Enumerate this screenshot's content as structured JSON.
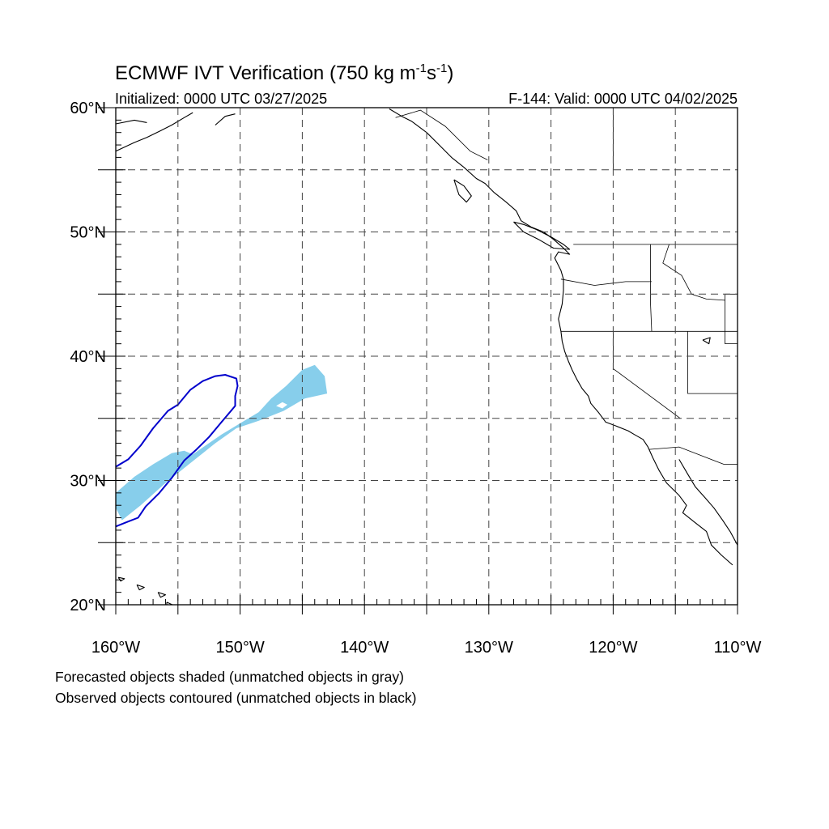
{
  "title": {
    "text": "ECMWF IVT Verification (750 kg m",
    "sup1": "-1",
    "mid": "s",
    "sup2": "-1",
    "close": ")"
  },
  "initialized": "Initialized: 0000 UTC 03/27/2025",
  "valid": "F-144: Valid: 0000 UTC 04/02/2025",
  "lat_labels": [
    {
      "text": "60°N",
      "lat": 60
    },
    {
      "text": "50°N",
      "lat": 50
    },
    {
      "text": "40°N",
      "lat": 40
    },
    {
      "text": "30°N",
      "lat": 30
    },
    {
      "text": "20°N",
      "lat": 20
    }
  ],
  "lon_labels": [
    {
      "text": "160°W",
      "lon": -160
    },
    {
      "text": "150°W",
      "lon": -150
    },
    {
      "text": "140°W",
      "lon": -140
    },
    {
      "text": "130°W",
      "lon": -130
    },
    {
      "text": "120°W",
      "lon": -120
    },
    {
      "text": "110°W",
      "lon": -110
    }
  ],
  "extent": {
    "lon": [
      -160,
      -110
    ],
    "lat": [
      20,
      60
    ]
  },
  "grid_spacing_deg": 5,
  "colors": {
    "forecast_fill": "#87ceeb",
    "observed_contour": "#0000cc",
    "coastline": "#000000",
    "gridline": "#444444"
  },
  "forecast_object": {
    "label": "Forecasted object (shaded)",
    "polygon": [
      [
        -160.0,
        29.0
      ],
      [
        -158.5,
        30.3
      ],
      [
        -157.0,
        31.3
      ],
      [
        -155.5,
        32.2
      ],
      [
        -154.5,
        32.4
      ],
      [
        -153.8,
        32.1
      ],
      [
        -152.8,
        32.8
      ],
      [
        -151.5,
        33.7
      ],
      [
        -150.0,
        34.6
      ],
      [
        -148.5,
        35.5
      ],
      [
        -147.5,
        36.6
      ],
      [
        -146.3,
        37.6
      ],
      [
        -145.0,
        38.9
      ],
      [
        -144.0,
        39.3
      ],
      [
        -143.2,
        38.4
      ],
      [
        -143.0,
        37.0
      ],
      [
        -144.8,
        36.6
      ],
      [
        -146.5,
        35.6
      ],
      [
        -148.5,
        34.8
      ],
      [
        -150.3,
        34.2
      ],
      [
        -152.0,
        33.0
      ],
      [
        -154.0,
        31.4
      ],
      [
        -156.0,
        29.8
      ],
      [
        -158.0,
        28.0
      ],
      [
        -159.5,
        26.8
      ],
      [
        -160.0,
        27.8
      ]
    ],
    "hole": [
      [
        -147.1,
        36.0
      ],
      [
        -146.6,
        36.3
      ],
      [
        -146.2,
        36.1
      ],
      [
        -146.6,
        35.8
      ]
    ]
  },
  "observed_object": {
    "label": "Observed object (contoured)",
    "polyline": [
      [
        -160.0,
        31.1
      ],
      [
        -159.0,
        31.7
      ],
      [
        -158.0,
        32.8
      ],
      [
        -157.0,
        34.2
      ],
      [
        -155.8,
        35.6
      ],
      [
        -155.0,
        36.1
      ],
      [
        -154.0,
        37.3
      ],
      [
        -153.0,
        38.0
      ],
      [
        -152.0,
        38.4
      ],
      [
        -151.2,
        38.5
      ],
      [
        -150.3,
        38.2
      ],
      [
        -150.2,
        37.6
      ],
      [
        -150.4,
        36.8
      ],
      [
        -150.4,
        36.0
      ],
      [
        -151.5,
        34.7
      ],
      [
        -152.5,
        33.5
      ],
      [
        -153.5,
        32.5
      ],
      [
        -154.5,
        31.6
      ],
      [
        -155.5,
        30.2
      ],
      [
        -156.5,
        29.0
      ],
      [
        -157.6,
        27.9
      ],
      [
        -158.2,
        27.0
      ],
      [
        -159.0,
        26.7
      ],
      [
        -160.0,
        26.3
      ]
    ]
  },
  "coastlines": [
    [
      [
        -160.0,
        56.5
      ],
      [
        -158.5,
        57.2
      ],
      [
        -157.5,
        57.6
      ],
      [
        -156.5,
        58.1
      ],
      [
        -155.5,
        58.6
      ],
      [
        -154.5,
        59.2
      ],
      [
        -153.8,
        59.6
      ]
    ],
    [
      [
        -160.0,
        58.7
      ],
      [
        -158.5,
        59.0
      ],
      [
        -157.5,
        58.8
      ]
    ],
    [
      [
        -152.0,
        58.6
      ],
      [
        -151.2,
        59.3
      ],
      [
        -150.4,
        59.5
      ]
    ],
    [
      [
        -147.0,
        60.0
      ],
      [
        -146.5,
        60.2
      ]
    ],
    [
      [
        -138.0,
        59.9
      ],
      [
        -137.0,
        59.3
      ],
      [
        -136.2,
        58.9
      ],
      [
        -135.0,
        58.0
      ],
      [
        -134.0,
        57.0
      ],
      [
        -133.0,
        56.0
      ],
      [
        -132.0,
        55.2
      ],
      [
        -131.0,
        54.3
      ],
      [
        -130.3,
        53.9
      ],
      [
        -129.6,
        53.2
      ],
      [
        -128.6,
        52.4
      ],
      [
        -127.8,
        51.7
      ],
      [
        -127.4,
        50.9
      ],
      [
        -126.6,
        50.4
      ],
      [
        -125.6,
        50.0
      ],
      [
        -124.8,
        49.4
      ],
      [
        -124.1,
        48.8
      ],
      [
        -123.5,
        48.2
      ],
      [
        -124.4,
        48.4
      ],
      [
        -124.7,
        47.9
      ],
      [
        -124.2,
        46.9
      ],
      [
        -124.0,
        46.2
      ],
      [
        -124.0,
        45.3
      ],
      [
        -124.1,
        44.2
      ],
      [
        -124.4,
        43.0
      ],
      [
        -124.2,
        42.0
      ],
      [
        -124.1,
        41.2
      ],
      [
        -123.9,
        40.4
      ],
      [
        -123.6,
        39.6
      ],
      [
        -123.3,
        38.9
      ],
      [
        -122.9,
        38.1
      ],
      [
        -122.5,
        37.4
      ],
      [
        -122.0,
        36.8
      ],
      [
        -121.8,
        36.2
      ],
      [
        -121.2,
        35.5
      ],
      [
        -120.6,
        34.7
      ],
      [
        -119.8,
        34.4
      ],
      [
        -118.8,
        34.0
      ],
      [
        -118.3,
        33.7
      ],
      [
        -117.6,
        33.3
      ],
      [
        -117.2,
        32.7
      ],
      [
        -116.8,
        31.8
      ],
      [
        -116.3,
        30.8
      ],
      [
        -115.7,
        29.8
      ],
      [
        -114.7,
        28.8
      ],
      [
        -114.1,
        28.0
      ],
      [
        -114.4,
        27.4
      ],
      [
        -113.4,
        26.6
      ],
      [
        -112.5,
        25.9
      ],
      [
        -112.1,
        24.8
      ],
      [
        -111.3,
        24.0
      ],
      [
        -110.4,
        23.2
      ]
    ],
    [
      [
        -114.7,
        31.7
      ],
      [
        -114.0,
        30.5
      ],
      [
        -113.4,
        29.5
      ],
      [
        -112.6,
        28.6
      ],
      [
        -111.9,
        27.8
      ],
      [
        -111.2,
        26.8
      ],
      [
        -110.6,
        25.9
      ],
      [
        -110.0,
        24.8
      ]
    ],
    [
      [
        -132.8,
        54.2
      ],
      [
        -132.0,
        53.7
      ],
      [
        -131.4,
        52.9
      ],
      [
        -131.8,
        52.4
      ],
      [
        -132.4,
        53.0
      ],
      [
        -132.8,
        54.2
      ]
    ],
    [
      [
        -128.0,
        50.8
      ],
      [
        -127.2,
        50.6
      ],
      [
        -126.2,
        50.2
      ],
      [
        -125.0,
        49.6
      ],
      [
        -124.0,
        49.0
      ],
      [
        -123.5,
        48.6
      ],
      [
        -124.8,
        48.7
      ],
      [
        -126.0,
        49.4
      ],
      [
        -127.2,
        50.0
      ],
      [
        -128.0,
        50.8
      ]
    ],
    [
      [
        -110.8,
        60.0
      ],
      [
        -110.0,
        60.2
      ]
    ],
    [
      [
        -155.9,
        20.2
      ],
      [
        -155.0,
        19.8
      ],
      [
        -155.3,
        19.2
      ],
      [
        -155.9,
        19.6
      ],
      [
        -155.9,
        20.2
      ]
    ],
    [
      [
        -156.6,
        21.0
      ],
      [
        -156.0,
        20.8
      ],
      [
        -156.4,
        20.6
      ],
      [
        -156.6,
        21.0
      ]
    ],
    [
      [
        -158.3,
        21.6
      ],
      [
        -157.7,
        21.4
      ],
      [
        -158.1,
        21.2
      ],
      [
        -158.3,
        21.6
      ]
    ],
    [
      [
        -159.8,
        22.2
      ],
      [
        -159.3,
        22.1
      ],
      [
        -159.6,
        21.9
      ],
      [
        -159.8,
        22.2
      ]
    ],
    [
      [
        -112.8,
        41.3
      ],
      [
        -112.2,
        41.5
      ],
      [
        -112.3,
        41.0
      ],
      [
        -112.8,
        41.3
      ]
    ]
  ],
  "borders": [
    [
      [
        -123.2,
        49.0
      ],
      [
        -110.0,
        49.0
      ]
    ],
    [
      [
        -124.2,
        46.2
      ],
      [
        -121.5,
        45.7
      ],
      [
        -119.0,
        46.0
      ],
      [
        -116.9,
        46.0
      ]
    ],
    [
      [
        -117.0,
        49.0
      ],
      [
        -117.0,
        44.3
      ],
      [
        -116.9,
        42.0
      ]
    ],
    [
      [
        -124.2,
        42.0
      ],
      [
        -110.0,
        42.0
      ]
    ],
    [
      [
        -120.0,
        42.0
      ],
      [
        -120.0,
        39.0
      ],
      [
        -114.6,
        35.0
      ]
    ],
    [
      [
        -111.0,
        45.0
      ],
      [
        -111.0,
        42.0
      ],
      [
        -111.0,
        41.0
      ],
      [
        -110.0,
        41.0
      ]
    ],
    [
      [
        -114.0,
        42.0
      ],
      [
        -114.0,
        37.0
      ],
      [
        -110.0,
        37.0
      ]
    ],
    [
      [
        -117.1,
        32.5
      ],
      [
        -114.7,
        32.7
      ],
      [
        -111.1,
        31.3
      ],
      [
        -110.0,
        31.3
      ]
    ],
    [
      [
        -115.5,
        49.0
      ],
      [
        -116.0,
        47.5
      ],
      [
        -114.5,
        46.5
      ],
      [
        -113.7,
        45.0
      ],
      [
        -112.5,
        44.6
      ],
      [
        -111.0,
        44.5
      ]
    ],
    [
      [
        -111.0,
        45.0
      ],
      [
        -110.0,
        45.0
      ]
    ],
    [
      [
        -120.0,
        55.0
      ],
      [
        -120.0,
        60.0
      ]
    ],
    [
      [
        -141.0,
        60.0
      ],
      [
        -141.0,
        60.0
      ]
    ],
    [
      [
        -137.5,
        59.2
      ],
      [
        -135.5,
        59.8
      ],
      [
        -133.5,
        58.5
      ],
      [
        -131.5,
        56.5
      ],
      [
        -130.1,
        55.8
      ]
    ]
  ],
  "footnote1": "Forecasted objects shaded (unmatched objects in gray)",
  "footnote2": "Observed objects contoured (unmatched objects in black)"
}
